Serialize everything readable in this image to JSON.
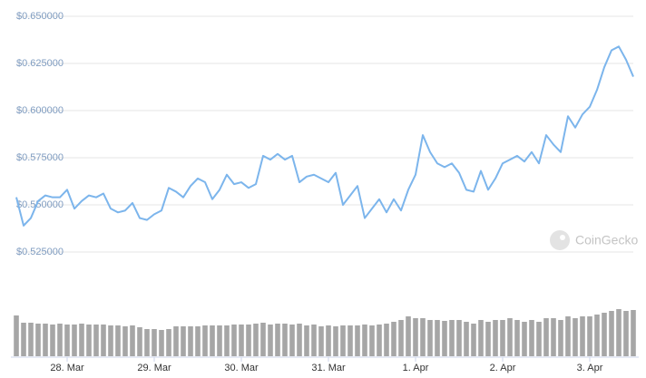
{
  "chart_data": {
    "type": "line",
    "watermark": "CoinGecko",
    "categories": [
      null,
      null,
      null,
      null,
      null,
      null,
      null,
      "28. Mar",
      null,
      null,
      null,
      null,
      null,
      null,
      null,
      null,
      null,
      null,
      null,
      "29. Mar",
      null,
      null,
      null,
      null,
      null,
      null,
      null,
      null,
      null,
      null,
      null,
      "30. Mar",
      null,
      null,
      null,
      null,
      null,
      null,
      null,
      null,
      null,
      null,
      null,
      "31. Mar",
      null,
      null,
      null,
      null,
      null,
      null,
      null,
      null,
      null,
      null,
      null,
      "1. Apr",
      null,
      null,
      null,
      null,
      null,
      null,
      null,
      null,
      null,
      null,
      null,
      "2. Apr",
      null,
      null,
      null,
      null,
      null,
      null,
      null,
      null,
      null,
      null,
      null,
      "3. Apr",
      null,
      null,
      null,
      null,
      null,
      null
    ],
    "series": [
      {
        "color": "#7cb5ec",
        "values": [
          0.554,
          0.539,
          0.543,
          0.552,
          0.555,
          0.554,
          0.554,
          0.558,
          0.548,
          0.552,
          0.555,
          0.554,
          0.556,
          0.548,
          0.546,
          0.547,
          0.551,
          0.543,
          0.542,
          0.545,
          0.547,
          0.559,
          0.557,
          0.554,
          0.56,
          0.564,
          0.562,
          0.553,
          0.558,
          0.566,
          0.561,
          0.562,
          0.559,
          0.561,
          0.576,
          0.574,
          0.577,
          0.574,
          0.576,
          0.562,
          0.565,
          0.566,
          0.564,
          0.562,
          0.567,
          0.55,
          0.555,
          0.56,
          0.543,
          0.548,
          0.553,
          0.546,
          0.553,
          0.547,
          0.558,
          0.566,
          0.587,
          0.578,
          0.572,
          0.57,
          0.572,
          0.567,
          0.558,
          0.557,
          0.568,
          0.558,
          0.564,
          0.572,
          0.574,
          0.576,
          0.573,
          0.578,
          0.572,
          0.587,
          0.582,
          0.578,
          0.597,
          0.591,
          0.598,
          0.602,
          0.611,
          0.623,
          0.632,
          0.634,
          0.627,
          0.618
        ]
      },
      {
        "type": "bar",
        "axis": "y2",
        "color": "#a6a6a6",
        "values": [
          45,
          37,
          37,
          36,
          36,
          35,
          36,
          35,
          35,
          36,
          35,
          35,
          35,
          34,
          34,
          33,
          34,
          32,
          30,
          30,
          29,
          30,
          33,
          33,
          33,
          33,
          34,
          34,
          34,
          34,
          35,
          35,
          35,
          36,
          37,
          35,
          36,
          36,
          35,
          36,
          34,
          35,
          33,
          34,
          33,
          34,
          34,
          34,
          35,
          34,
          35,
          36,
          38,
          40,
          44,
          42,
          42,
          40,
          40,
          39,
          40,
          40,
          38,
          36,
          40,
          38,
          40,
          40,
          42,
          40,
          38,
          40,
          38,
          42,
          42,
          40,
          44,
          42,
          44,
          44,
          46,
          48,
          50,
          52,
          50,
          51
        ]
      }
    ],
    "ylim": [
      0.516,
      0.658
    ],
    "yticks": [
      {
        "value": 0.525,
        "label": "$0.525000"
      },
      {
        "value": 0.55,
        "label": "$0.550000"
      },
      {
        "value": 0.575,
        "label": "$0.575000"
      },
      {
        "value": 0.6,
        "label": "$0.600000"
      },
      {
        "value": 0.625,
        "label": "$0.625000"
      },
      {
        "value": 0.65,
        "label": "$0.650000"
      }
    ],
    "y2lim": [
      0,
      55
    ],
    "grid": true
  }
}
